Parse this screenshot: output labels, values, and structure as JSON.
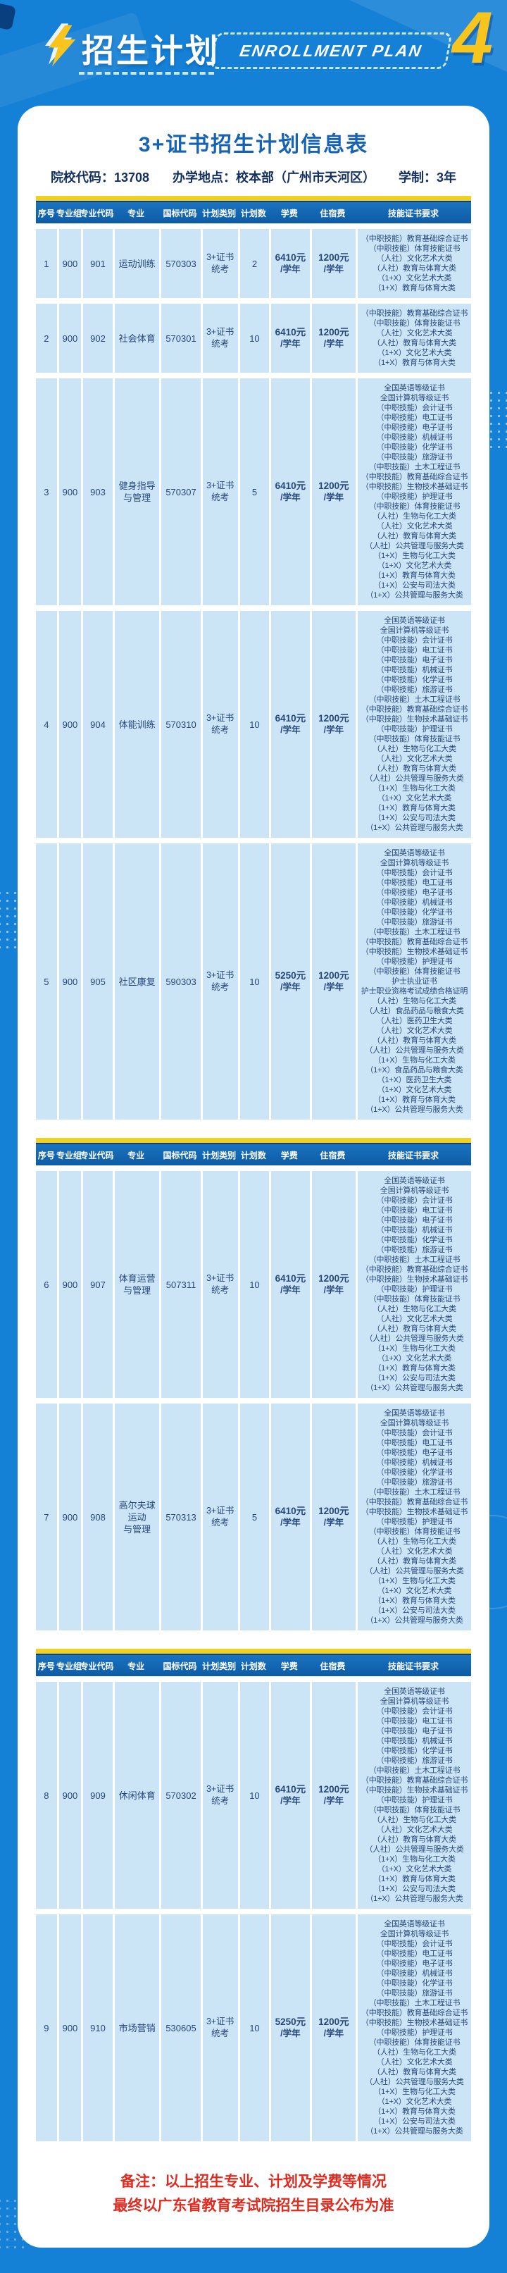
{
  "colors": {
    "page_bg": "#1581d6",
    "accent_yellow": "#f7c51e",
    "table_header_blue": "#1166ae",
    "table_top_bar_yellow": "#f0d020",
    "row_bg": "#cbe5f7",
    "title_blue": "#1563b2",
    "text_navy": "#27477b",
    "note_red": "#e02b20"
  },
  "header": {
    "title_cn": "招生计划",
    "title_en": "ENROLLMENT PLAN",
    "page_number": "4",
    "icon": "lightning-bolt-icon"
  },
  "card": {
    "title": "3+证书招生计划信息表",
    "info": [
      {
        "label": "院校代码：",
        "value": "13708"
      },
      {
        "label": "办学地点：",
        "value": "校本部（广州市天河区）"
      },
      {
        "label": "学制：",
        "value": "3年"
      }
    ],
    "table": {
      "columns": [
        "序号",
        "专业组",
        "专业代码",
        "专业",
        "国标代码",
        "计划类别",
        "计划数",
        "学费",
        "住宿费",
        "技能证书要求"
      ],
      "cert_sets": {
        "basic": [
          "（中职技能）教育基础综合证书",
          "（中职技能）体育技能证书",
          "（人社）文化艺术大类",
          "（人社）教育与体育大类",
          "（1+X）文化艺术大类",
          "（1+X）教育与体育大类"
        ],
        "standard": [
          "全国英语等级证书",
          "全国计算机等级证书",
          "（中职技能）会计证书",
          "（中职技能）电工证书",
          "（中职技能）电子证书",
          "（中职技能）机械证书",
          "（中职技能）化学证书",
          "（中职技能）旅游证书",
          "（中职技能）土木工程证书",
          "（中职技能）教育基础综合证书",
          "（中职技能）生物技术基础证书",
          "（中职技能）护理证书",
          "（中职技能）体育技能证书",
          "（人社）生物与化工大类",
          "（人社）文化艺术大类",
          "（人社）教育与体育大类",
          "（人社）公共管理与服务大类",
          "（1+X）生物与化工大类",
          "（1+X）文化艺术大类",
          "（1+X）教育与体育大类",
          "（1+X）公安与司法大类",
          "（1+X）公共管理与服务大类"
        ],
        "community": [
          "全国英语等级证书",
          "全国计算机等级证书",
          "（中职技能）会计证书",
          "（中职技能）电工证书",
          "（中职技能）电子证书",
          "（中职技能）机械证书",
          "（中职技能）化学证书",
          "（中职技能）旅游证书",
          "（中职技能）土木工程证书",
          "（中职技能）教育基础综合证书",
          "（中职技能）生物技术基础证书",
          "（中职技能）护理证书",
          "（中职技能）体育技能证书",
          "护士执业证书",
          "护士职业资格考试成绩合格证明",
          "（人社）生物与化工大类",
          "（人社）食品药品与粮食大类",
          "（人社）医药卫生大类",
          "（人社）文化艺术大类",
          "（人社）教育与体育大类",
          "（人社）公共管理与服务大类",
          "（1+X）生物与化工大类",
          "（1+X）食品药品与粮食大类",
          "（1+X）医药卫生大类",
          "（1+X）文化艺术大类",
          "（1+X）教育与体育大类",
          "（1+X）公共管理与服务大类"
        ]
      },
      "sections": [
        {
          "rows": [
            {
              "seq": "1",
              "group": "900",
              "code": "901",
              "major_lines": [
                "运动训练"
              ],
              "national_code": "570303",
              "plan_type_lines": [
                "3+证书",
                "统考"
              ],
              "plan_count": "2",
              "tuition_lines": [
                "6410元",
                "/学年"
              ],
              "housing_lines": [
                "1200元",
                "/学年"
              ],
              "cert_set": "basic"
            },
            {
              "seq": "2",
              "group": "900",
              "code": "902",
              "major_lines": [
                "社会体育"
              ],
              "national_code": "570301",
              "plan_type_lines": [
                "3+证书",
                "统考"
              ],
              "plan_count": "10",
              "tuition_lines": [
                "6410元",
                "/学年"
              ],
              "housing_lines": [
                "1200元",
                "/学年"
              ],
              "cert_set": "basic"
            },
            {
              "seq": "3",
              "group": "900",
              "code": "903",
              "major_lines": [
                "健身指导",
                "与管理"
              ],
              "national_code": "570307",
              "plan_type_lines": [
                "3+证书",
                "统考"
              ],
              "plan_count": "5",
              "tuition_lines": [
                "6410元",
                "/学年"
              ],
              "housing_lines": [
                "1200元",
                "/学年"
              ],
              "cert_set": "standard"
            },
            {
              "seq": "4",
              "group": "900",
              "code": "904",
              "major_lines": [
                "体能训练"
              ],
              "national_code": "570310",
              "plan_type_lines": [
                "3+证书",
                "统考"
              ],
              "plan_count": "10",
              "tuition_lines": [
                "6410元",
                "/学年"
              ],
              "housing_lines": [
                "1200元",
                "/学年"
              ],
              "cert_set": "standard"
            },
            {
              "seq": "5",
              "group": "900",
              "code": "905",
              "major_lines": [
                "社区康复"
              ],
              "national_code": "590303",
              "plan_type_lines": [
                "3+证书",
                "统考"
              ],
              "plan_count": "10",
              "tuition_lines": [
                "5250元",
                "/学年"
              ],
              "housing_lines": [
                "1200元",
                "/学年"
              ],
              "cert_set": "community"
            }
          ]
        },
        {
          "rows": [
            {
              "seq": "6",
              "group": "900",
              "code": "907",
              "major_lines": [
                "体育运营",
                "与管理"
              ],
              "national_code": "507311",
              "plan_type_lines": [
                "3+证书",
                "统考"
              ],
              "plan_count": "10",
              "tuition_lines": [
                "6410元",
                "/学年"
              ],
              "housing_lines": [
                "1200元",
                "/学年"
              ],
              "cert_set": "standard"
            },
            {
              "seq": "7",
              "group": "900",
              "code": "908",
              "major_lines": [
                "高尔夫球",
                "运动",
                "与管理"
              ],
              "national_code": "570313",
              "plan_type_lines": [
                "3+证书",
                "统考"
              ],
              "plan_count": "5",
              "tuition_lines": [
                "6410元",
                "/学年"
              ],
              "housing_lines": [
                "1200元",
                "/学年"
              ],
              "cert_set": "standard"
            }
          ]
        },
        {
          "rows": [
            {
              "seq": "8",
              "group": "900",
              "code": "909",
              "major_lines": [
                "休闲体育"
              ],
              "national_code": "570302",
              "plan_type_lines": [
                "3+证书",
                "统考"
              ],
              "plan_count": "10",
              "tuition_lines": [
                "6410元",
                "/学年"
              ],
              "housing_lines": [
                "1200元",
                "/学年"
              ],
              "cert_set": "standard"
            },
            {
              "seq": "9",
              "group": "900",
              "code": "910",
              "major_lines": [
                "市场营销"
              ],
              "national_code": "530605",
              "plan_type_lines": [
                "3+证书",
                "统考"
              ],
              "plan_count": "10",
              "tuition_lines": [
                "5250元",
                "/学年"
              ],
              "housing_lines": [
                "1200元",
                "/学年"
              ],
              "cert_set": "standard"
            }
          ]
        }
      ]
    },
    "note_lines": [
      "备注：以上招生专业、计划及学费等情况",
      "最终以广东省教育考试院招生目录公布为准"
    ]
  }
}
